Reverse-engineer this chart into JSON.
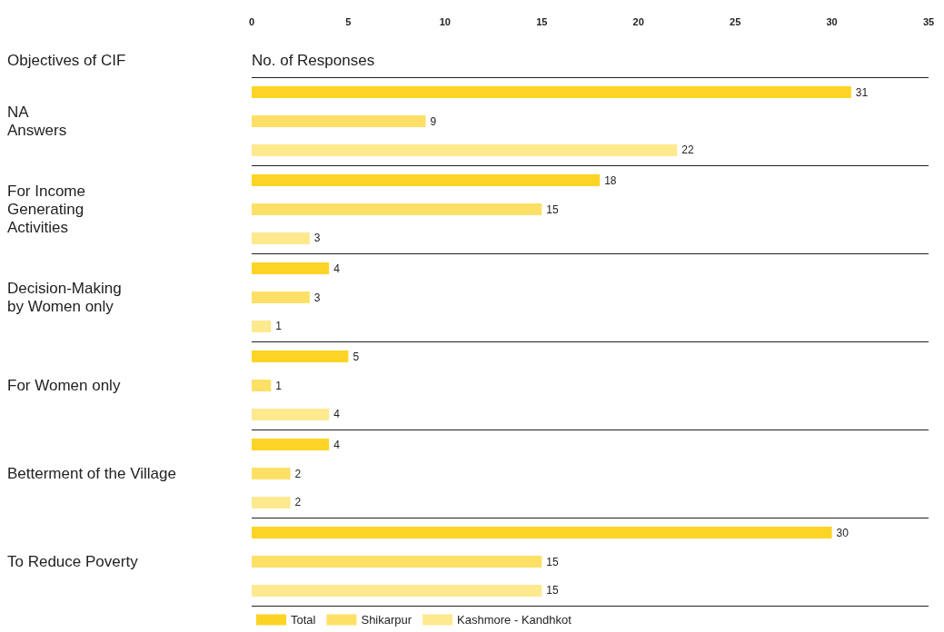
{
  "chart_data": {
    "type": "bar",
    "orientation": "horizontal",
    "ylabel": "Objectives of CIF",
    "xlabel": "No. of Responses",
    "categories": [
      "NA\nAnswers",
      "For Income\nGenerating\nActivities",
      "Decision-Making\nby Women only",
      "For Women only",
      "Betterment of the Village",
      "To Reduce Poverty"
    ],
    "series": [
      {
        "name": "Total",
        "color": "#fdd426",
        "values": [
          31,
          18,
          4,
          5,
          4,
          30
        ]
      },
      {
        "name": "Shikarpur",
        "color": "#fee067",
        "values": [
          9,
          15,
          3,
          1,
          2,
          15
        ]
      },
      {
        "name": "Kashmore - Kandhkot",
        "color": "#fee98f",
        "values": [
          22,
          3,
          1,
          4,
          2,
          15
        ]
      }
    ],
    "xlim": [
      0,
      35
    ],
    "xticks": [
      0,
      5,
      10,
      15,
      20,
      25,
      30,
      35
    ],
    "data_labels": true,
    "grid": "y",
    "legend": "bottom"
  }
}
